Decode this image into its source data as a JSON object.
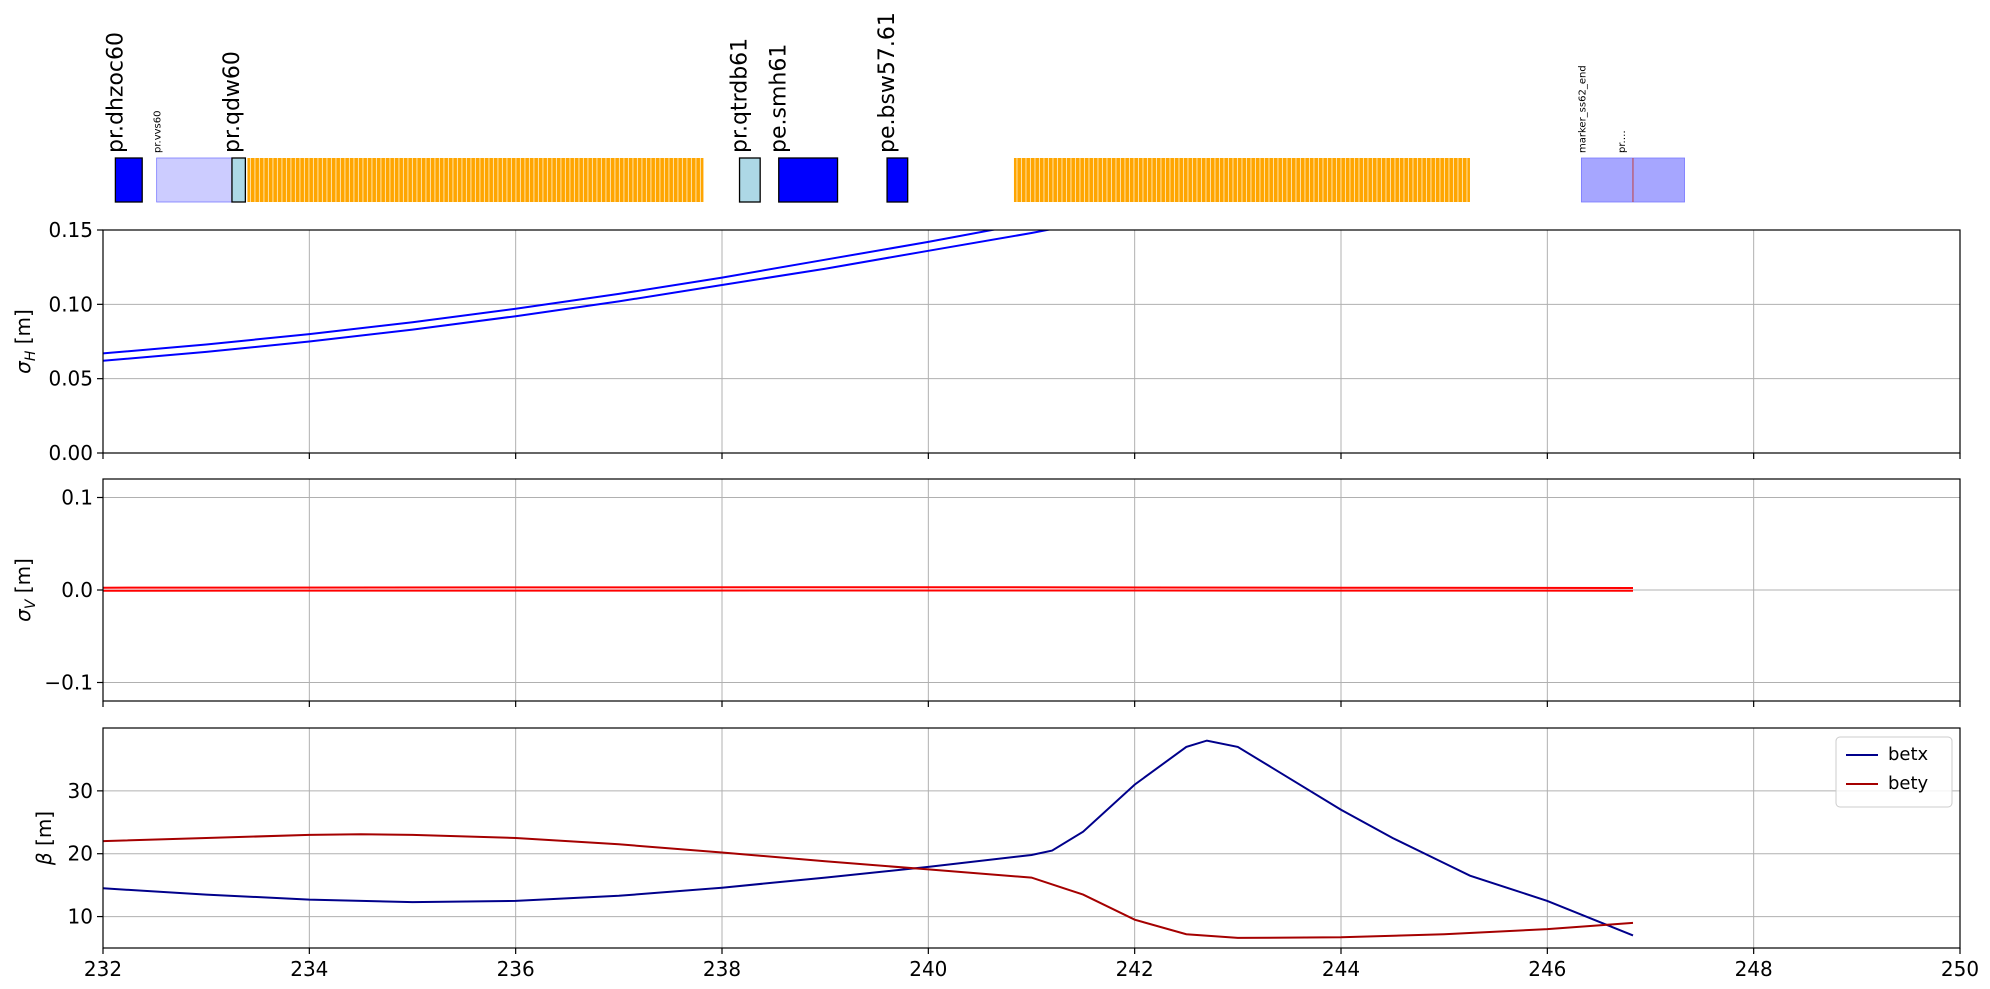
{
  "chart_data": [
    {
      "type": "layout",
      "elements": [
        {
          "name": "pr.dhzoc60",
          "start": 232.12,
          "end": 232.38,
          "color": "#0000ff",
          "border": true,
          "label": "pr.dhzoc60",
          "label_size": "large"
        },
        {
          "name": "pr.vvs60",
          "start": 232.52,
          "end": 233.25,
          "color": "#ccccff",
          "border": false,
          "label": "pr.vvs60",
          "label_size": "small"
        },
        {
          "name": "pr.qdw60",
          "start": 233.25,
          "end": 233.38,
          "color": "#add8e6",
          "border": true,
          "label": "pr.qdw60",
          "label_size": "large"
        },
        {
          "name": "pe.smh61",
          "start": 238.55,
          "end": 239.12,
          "color": "#0000ff",
          "border": true,
          "label": "pe.smh61",
          "label_size": "large"
        },
        {
          "name": "pr.qtrdb61",
          "start": 238.17,
          "end": 238.37,
          "color": "#add8e6",
          "border": true,
          "label": "pr.qtrdb61",
          "label_size": "large"
        },
        {
          "name": "pe.bsw57.61",
          "start": 239.6,
          "end": 239.8,
          "color": "#0000ff",
          "border": true,
          "label": "pe.bsw57.61",
          "label_size": "large"
        },
        {
          "name": "marker_ss62_end",
          "start": 246.33,
          "end": 247.33,
          "color": "#a6a6ff",
          "border": false,
          "label": "marker_ss62_end",
          "label_size": "small",
          "overlap_label": "pr.…"
        }
      ],
      "striped_bands": [
        {
          "start": 233.4,
          "end": 237.82,
          "color": "#ffa500"
        },
        {
          "start": 240.83,
          "end": 245.25,
          "color": "#ffa500"
        }
      ],
      "marker_line": 246.83
    },
    {
      "type": "line",
      "ylabel": "σ_H [m]",
      "ylabel_main": "σ",
      "ylabel_sub": "H",
      "ylabel_unit": " [m]",
      "xlim": [
        232,
        250
      ],
      "ylim": [
        0.0,
        0.15
      ],
      "yticks": [
        0.0,
        0.05,
        0.1,
        0.15
      ],
      "ytick_labels": [
        "0.00",
        "0.05",
        "0.10",
        "0.15"
      ],
      "grid": true,
      "series": [
        {
          "color": "#0000ff",
          "x": [
            232,
            233,
            234,
            235,
            236,
            237,
            238,
            239,
            240,
            241,
            241.3
          ],
          "y": [
            0.067,
            0.073,
            0.08,
            0.088,
            0.097,
            0.107,
            0.118,
            0.13,
            0.142,
            0.155,
            0.159
          ]
        },
        {
          "color": "#0000ff",
          "x": [
            232,
            233,
            234,
            235,
            236,
            237,
            238,
            239,
            240,
            241,
            241.3
          ],
          "y": [
            0.062,
            0.068,
            0.075,
            0.083,
            0.092,
            0.102,
            0.113,
            0.124,
            0.136,
            0.148,
            0.152
          ]
        }
      ]
    },
    {
      "type": "line",
      "ylabel": "σ_V [m]",
      "ylabel_main": "σ",
      "ylabel_sub": "V",
      "ylabel_unit": " [m]",
      "xlim": [
        232,
        250
      ],
      "ylim": [
        -0.12,
        0.12
      ],
      "yticks": [
        -0.1,
        0.0,
        0.1
      ],
      "ytick_labels": [
        "−0.1",
        "0.0",
        "0.1"
      ],
      "grid": true,
      "series": [
        {
          "color": "#ff0000",
          "x": [
            232,
            236,
            240,
            244,
            246.83
          ],
          "y": [
            0.0025,
            0.0028,
            0.003,
            0.0025,
            0.0022
          ]
        },
        {
          "color": "#ff0000",
          "x": [
            232,
            236,
            240,
            244,
            246.83
          ],
          "y": [
            -0.0008,
            -0.0006,
            -0.0005,
            -0.0007,
            -0.0008
          ]
        }
      ]
    },
    {
      "type": "line",
      "ylabel": "β [m]",
      "ylabel_main": "β",
      "ylabel_sub": "",
      "ylabel_unit": " [m]",
      "xlim": [
        232,
        250
      ],
      "ylim": [
        5,
        40
      ],
      "yticks": [
        10,
        20,
        30
      ],
      "ytick_labels": [
        "10",
        "20",
        "30"
      ],
      "xticks": [
        232,
        234,
        236,
        238,
        240,
        242,
        244,
        246,
        248,
        250
      ],
      "xtick_labels": [
        "232",
        "234",
        "236",
        "238",
        "240",
        "242",
        "244",
        "246",
        "248",
        "250"
      ],
      "grid": true,
      "legend": "top-right",
      "series": [
        {
          "name": "betx",
          "color": "#00008b",
          "x": [
            232,
            233,
            234,
            235,
            236,
            237,
            238,
            239,
            240,
            241,
            241.2,
            241.5,
            242,
            242.5,
            242.7,
            243,
            243.5,
            244,
            244.5,
            245,
            245.25,
            246,
            246.83
          ],
          "y": [
            14.5,
            13.5,
            12.7,
            12.3,
            12.5,
            13.3,
            14.6,
            16.2,
            17.9,
            19.8,
            20.5,
            23.5,
            31.0,
            37.0,
            38.0,
            37.0,
            32.0,
            27.0,
            22.5,
            18.5,
            16.5,
            12.5,
            7.0
          ]
        },
        {
          "name": "bety",
          "color": "#a50000",
          "x": [
            232,
            233,
            234,
            234.5,
            235,
            236,
            237,
            238,
            239,
            240,
            241,
            241.5,
            242,
            242.5,
            243,
            244,
            245,
            246,
            246.83
          ],
          "y": [
            22.0,
            22.5,
            23.0,
            23.1,
            23.0,
            22.5,
            21.5,
            20.2,
            18.8,
            17.5,
            16.2,
            13.5,
            9.5,
            7.2,
            6.6,
            6.7,
            7.2,
            8.0,
            9.0
          ]
        }
      ]
    }
  ]
}
